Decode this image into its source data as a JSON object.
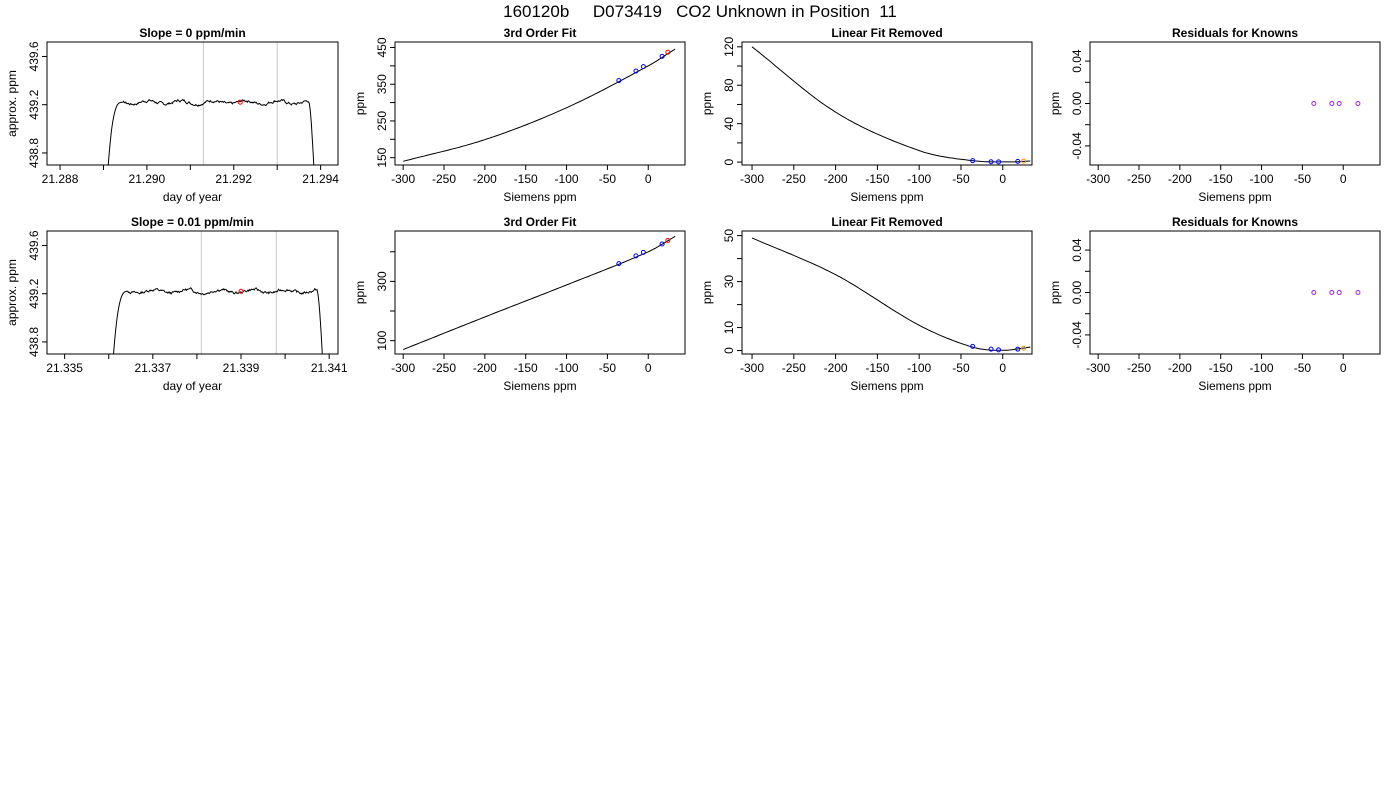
{
  "title": "160120b     D073419   CO2 Unknown in Position  11",
  "colors": {
    "line": "#000000",
    "unknown": "#ff0000",
    "known": "#0000ff",
    "residual": "#a020f0",
    "orange": "#ff8c00",
    "guide": "#c8c8c8"
  },
  "chart_data": [
    {
      "type": "line",
      "title": "Slope =  0  ppm/min",
      "xlabel": "day of year",
      "ylabel": "approx. ppm",
      "xlim": [
        21.2877,
        21.2944
      ],
      "ylim": [
        438.7,
        439.72
      ],
      "xticks": [
        "21.288",
        "21.290",
        "21.292",
        "21.294"
      ],
      "xtick_values": [
        21.288,
        21.29,
        21.292,
        21.294
      ],
      "yticks": [
        "438.8",
        "439.2",
        "439.6"
      ],
      "ytick_values": [
        438.8,
        439.2,
        439.6
      ],
      "minor_xticks": [
        21.289,
        21.291,
        21.293
      ],
      "vlines": [
        21.2913,
        21.293
      ],
      "trace": {
        "x_start": 21.2891,
        "x_end": 21.29385,
        "plateau": 439.22,
        "seed": 7
      },
      "points": [
        {
          "x": 21.29215,
          "y": 439.22,
          "role": "unknown"
        }
      ]
    },
    {
      "type": "line",
      "title": "3rd Order Fit",
      "xlabel": "Siemens ppm",
      "ylabel": "ppm",
      "xlim": [
        -310,
        45
      ],
      "ylim": [
        130,
        465
      ],
      "xticks": [
        "-300",
        "-250",
        "-200",
        "-150",
        "-100",
        "-50",
        "0"
      ],
      "xtick_values": [
        -300,
        -250,
        -200,
        -150,
        -100,
        -50,
        0
      ],
      "yticks": [
        "150",
        "250",
        "350",
        "450"
      ],
      "ytick_values": [
        150,
        250,
        350,
        450
      ],
      "minor_yticks": [
        200,
        300,
        400
      ],
      "curve": {
        "x0": -300,
        "x1": 33,
        "points": [
          [
            -300,
            140
          ],
          [
            -200,
            199
          ],
          [
            -100,
            286
          ],
          [
            0,
            400
          ],
          [
            33,
            446
          ]
        ]
      },
      "points": [
        {
          "x": -36,
          "y": 360,
          "role": "known"
        },
        {
          "x": -15,
          "y": 386,
          "role": "known"
        },
        {
          "x": -6,
          "y": 398,
          "role": "known"
        },
        {
          "x": 17,
          "y": 426,
          "role": "known"
        },
        {
          "x": 24,
          "y": 437,
          "role": "unknown"
        }
      ]
    },
    {
      "type": "line",
      "title": "Linear Fit Removed",
      "xlabel": "Siemens ppm",
      "ylabel": "ppm",
      "xlim": [
        -312,
        35
      ],
      "ylim": [
        -3,
        125
      ],
      "xticks": [
        "-300",
        "-250",
        "-200",
        "-150",
        "-100",
        "-50",
        "0"
      ],
      "xtick_values": [
        -300,
        -250,
        -200,
        -150,
        -100,
        -50,
        0
      ],
      "yticks": [
        "0",
        "40",
        "80",
        "120"
      ],
      "ytick_values": [
        0,
        40,
        80,
        120
      ],
      "minor_yticks": [
        20,
        60,
        100
      ],
      "curve": {
        "x0": -300,
        "x1": 33,
        "points": [
          [
            -300,
            120
          ],
          [
            -200,
            52
          ],
          [
            -100,
            12
          ],
          [
            -36,
            1.5
          ],
          [
            10,
            0.2
          ],
          [
            33,
            1.2
          ]
        ]
      },
      "points": [
        {
          "x": -36,
          "y": 1.5,
          "role": "known"
        },
        {
          "x": -14,
          "y": 0.4,
          "role": "known"
        },
        {
          "x": -5,
          "y": 0.3,
          "role": "known"
        },
        {
          "x": 18,
          "y": 0.8,
          "role": "known"
        },
        {
          "x": 25,
          "y": 1.0,
          "role": "orange"
        }
      ]
    },
    {
      "type": "scatter",
      "title": "Residuals for Knowns",
      "xlabel": "Siemens ppm",
      "ylabel": "ppm",
      "xlim": [
        -310,
        45
      ],
      "ylim": [
        -0.058,
        0.058
      ],
      "xticks": [
        "-300",
        "-250",
        "-200",
        "-150",
        "-100",
        "-50",
        "0"
      ],
      "xtick_values": [
        -300,
        -250,
        -200,
        -150,
        -100,
        -50,
        0
      ],
      "yticks": [
        "-0.04",
        "0.00",
        "0.04"
      ],
      "ytick_values": [
        -0.04,
        0.0,
        0.04
      ],
      "minor_yticks": [
        -0.02,
        0.02
      ],
      "points": [
        {
          "x": -36,
          "y": 0.0,
          "role": "residual"
        },
        {
          "x": -14,
          "y": 0.0,
          "role": "residual"
        },
        {
          "x": -5,
          "y": 0.0,
          "role": "residual"
        },
        {
          "x": 18,
          "y": 0.0,
          "role": "residual"
        }
      ]
    },
    {
      "type": "line",
      "title": "Slope =  0.01  ppm/min",
      "xlabel": "day of year",
      "ylabel": "approx. ppm",
      "xlim": [
        21.3346,
        21.3412
      ],
      "ylim": [
        438.7,
        439.72
      ],
      "xticks": [
        "21.335",
        "21.337",
        "21.339",
        "21.341"
      ],
      "xtick_values": [
        21.335,
        21.337,
        21.339,
        21.341
      ],
      "yticks": [
        "438.8",
        "439.2",
        "439.6"
      ],
      "ytick_values": [
        438.8,
        439.2,
        439.6
      ],
      "minor_xticks": [
        21.336,
        21.338,
        21.34
      ],
      "vlines": [
        21.3381,
        21.3398
      ],
      "trace": {
        "x_start": 21.3361,
        "x_end": 21.34085,
        "plateau": 439.22,
        "seed": 13
      },
      "points": [
        {
          "x": 21.339,
          "y": 439.22,
          "role": "unknown"
        }
      ]
    },
    {
      "type": "line",
      "title": "3rd Order Fit",
      "xlabel": "Siemens ppm",
      "ylabel": "ppm",
      "xlim": [
        -310,
        45
      ],
      "ylim": [
        55,
        470
      ],
      "xticks": [
        "-300",
        "-250",
        "-200",
        "-150",
        "-100",
        "-50",
        "0"
      ],
      "xtick_values": [
        -300,
        -250,
        -200,
        -150,
        -100,
        -50,
        0
      ],
      "yticks": [
        "100",
        "300"
      ],
      "ytick_values": [
        100,
        300
      ],
      "minor_yticks": [
        200,
        400
      ],
      "curve": {
        "x0": -300,
        "x1": 33,
        "points": [
          [
            -300,
            70
          ],
          [
            -200,
            180
          ],
          [
            -100,
            288
          ],
          [
            0,
            400
          ],
          [
            33,
            452
          ]
        ]
      },
      "points": [
        {
          "x": -36,
          "y": 360,
          "role": "known"
        },
        {
          "x": -15,
          "y": 386,
          "role": "known"
        },
        {
          "x": -6,
          "y": 398,
          "role": "known"
        },
        {
          "x": 17,
          "y": 426,
          "role": "known"
        },
        {
          "x": 24,
          "y": 438,
          "role": "unknown"
        }
      ]
    },
    {
      "type": "line",
      "title": "Linear Fit Removed",
      "xlabel": "Siemens ppm",
      "ylabel": "ppm",
      "xlim": [
        -312,
        35
      ],
      "ylim": [
        -1.5,
        52
      ],
      "xticks": [
        "-300",
        "-250",
        "-200",
        "-150",
        "-100",
        "-50",
        "0"
      ],
      "xtick_values": [
        -300,
        -250,
        -200,
        -150,
        -100,
        -50,
        0
      ],
      "yticks": [
        "0",
        "10",
        "30",
        "50"
      ],
      "ytick_values": [
        0,
        10,
        30,
        50
      ],
      "minor_yticks": [
        20,
        40
      ],
      "curve": {
        "x0": -300,
        "x1": 33,
        "points": [
          [
            -300,
            49
          ],
          [
            -200,
            33
          ],
          [
            -100,
            11
          ],
          [
            -36,
            1.5
          ],
          [
            0,
            0.1
          ],
          [
            33,
            1.5
          ]
        ]
      },
      "points": [
        {
          "x": -36,
          "y": 1.8,
          "role": "known"
        },
        {
          "x": -14,
          "y": 0.6,
          "role": "known"
        },
        {
          "x": -5,
          "y": 0.3,
          "role": "known"
        },
        {
          "x": 18,
          "y": 0.6,
          "role": "known"
        },
        {
          "x": 25,
          "y": 1.0,
          "role": "orange"
        }
      ]
    },
    {
      "type": "scatter",
      "title": "Residuals for Knowns",
      "xlabel": "Siemens ppm",
      "ylabel": "ppm",
      "xlim": [
        -310,
        45
      ],
      "ylim": [
        -0.058,
        0.058
      ],
      "xticks": [
        "-300",
        "-250",
        "-200",
        "-150",
        "-100",
        "-50",
        "0"
      ],
      "xtick_values": [
        -300,
        -250,
        -200,
        -150,
        -100,
        -50,
        0
      ],
      "yticks": [
        "-0.04",
        "0.00",
        "0.04"
      ],
      "ytick_values": [
        -0.04,
        0.0,
        0.04
      ],
      "minor_yticks": [
        -0.02,
        0.02
      ],
      "points": [
        {
          "x": -36,
          "y": 0.0,
          "role": "residual"
        },
        {
          "x": -14,
          "y": 0.0,
          "role": "residual"
        },
        {
          "x": -5,
          "y": 0.0,
          "role": "residual"
        },
        {
          "x": 18,
          "y": 0.0,
          "role": "residual"
        }
      ]
    }
  ]
}
